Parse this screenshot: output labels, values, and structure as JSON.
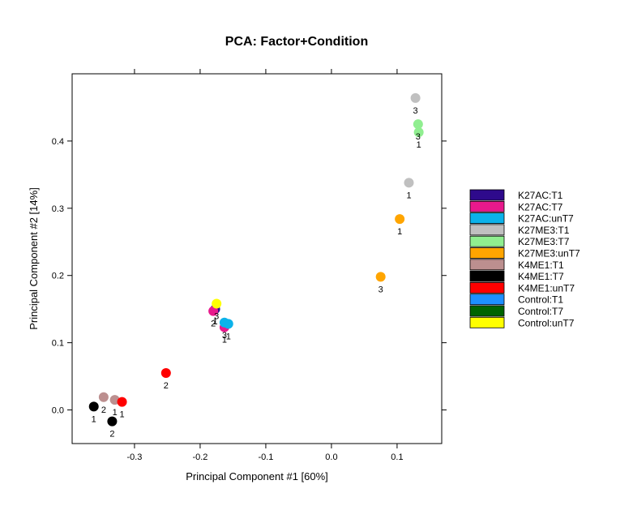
{
  "chart_data": {
    "type": "scatter",
    "title": "PCA: Factor+Condition",
    "xlabel": "Principal Component #1 [60%]",
    "ylabel": "Principal Component #2 [14%]",
    "xlim": [
      -0.395,
      0.168
    ],
    "ylim": [
      -0.05,
      0.5
    ],
    "xticks": [
      -0.3,
      -0.2,
      -0.1,
      0.0,
      0.1
    ],
    "xtick_labels": [
      "-0.3",
      "-0.2",
      "-0.1",
      "0.0",
      "0.1"
    ],
    "yticks": [
      0.0,
      0.1,
      0.2,
      0.3,
      0.4
    ],
    "ytick_labels": [
      "0.0",
      "0.1",
      "0.2",
      "0.3",
      "0.4"
    ],
    "grid": false,
    "legend_position": "right",
    "series": [
      {
        "name": "K27AC:T1",
        "color": "#2e0a8c",
        "points": [
          {
            "x": -0.177,
            "y": 0.15,
            "label": "1"
          }
        ]
      },
      {
        "name": "K27AC:T7",
        "color": "#e8198c",
        "points": [
          {
            "x": -0.18,
            "y": 0.147,
            "label": "2"
          },
          {
            "x": -0.163,
            "y": 0.123,
            "label": "1"
          }
        ]
      },
      {
        "name": "K27AC:unT7",
        "color": "#0cb2ea",
        "points": [
          {
            "x": -0.163,
            "y": 0.13,
            "label": "3"
          },
          {
            "x": -0.157,
            "y": 0.128,
            "label": "1"
          }
        ]
      },
      {
        "name": "K27ME3:T1",
        "color": "#c0c0c0",
        "points": [
          {
            "x": 0.128,
            "y": 0.464,
            "label": "3"
          },
          {
            "x": 0.118,
            "y": 0.338,
            "label": "1"
          }
        ]
      },
      {
        "name": "K27ME3:T7",
        "color": "#90ee90",
        "points": [
          {
            "x": 0.132,
            "y": 0.425,
            "label": "3"
          },
          {
            "x": 0.133,
            "y": 0.413,
            "label": "1"
          }
        ]
      },
      {
        "name": "K27ME3:unT7",
        "color": "#ffa500",
        "points": [
          {
            "x": 0.104,
            "y": 0.284,
            "label": "1"
          },
          {
            "x": 0.075,
            "y": 0.198,
            "label": "3"
          }
        ]
      },
      {
        "name": "K4ME1:T1",
        "color": "#bc8f8f",
        "points": [
          {
            "x": -0.347,
            "y": 0.019,
            "label": "2"
          },
          {
            "x": -0.33,
            "y": 0.015,
            "label": "1"
          }
        ]
      },
      {
        "name": "K4ME1:T7",
        "color": "#000000",
        "points": [
          {
            "x": -0.362,
            "y": 0.005,
            "label": "1"
          },
          {
            "x": -0.334,
            "y": -0.017,
            "label": "2"
          }
        ]
      },
      {
        "name": "K4ME1:unT7",
        "color": "#ff0000",
        "points": [
          {
            "x": -0.319,
            "y": 0.012,
            "label": "1"
          },
          {
            "x": -0.252,
            "y": 0.055,
            "label": "2"
          }
        ]
      },
      {
        "name": "Control:T1",
        "color": "#1e90ff",
        "points": []
      },
      {
        "name": "Control:T7",
        "color": "#006400",
        "points": []
      },
      {
        "name": "Control:unT7",
        "color": "#ffff00",
        "points": [
          {
            "x": -0.175,
            "y": 0.158,
            "label": "3"
          }
        ]
      }
    ]
  }
}
